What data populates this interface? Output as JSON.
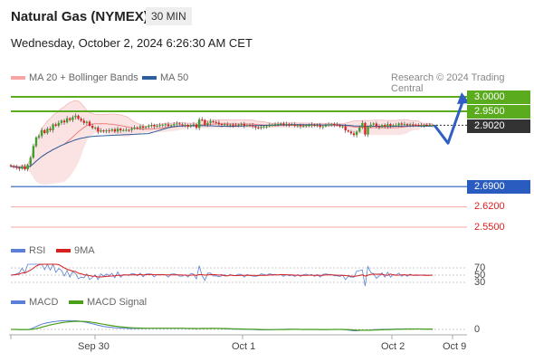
{
  "header": {
    "title": "Natural Gas (NYMEX)",
    "timeframe": "30 MIN",
    "datetime": "Wednesday, October 2, 2024 6:26:30 AM CET",
    "credit": "Research © 2024 Trading Central"
  },
  "legend": {
    "bb": "MA 20 + Bollinger Bands",
    "ma50": "MA 50",
    "rsi": "RSI",
    "rsi_ma": "9MA",
    "macd": "MACD",
    "macd_signal": "MACD Signal"
  },
  "colors": {
    "resistance": "#5aab1e",
    "support": "#2a5cc0",
    "minor_support": "#f4a6a6",
    "price_tag": "#333333",
    "ma50": "#2e5e9e",
    "bb": "#f08080"
  },
  "chart_data": {
    "type": "candlestick",
    "instrument": "Natural Gas (NYMEX)",
    "interval": "30 MIN",
    "ylim": [
      2.53,
      3.02
    ],
    "current_price": 2.902,
    "price_label": "2.9020",
    "x_ticks": [
      "Sep 30",
      "Oct 1",
      "Oct 2",
      "Oct 9"
    ],
    "levels": [
      {
        "value": 3.0,
        "label": "3.0000",
        "kind": "resistance"
      },
      {
        "value": 2.95,
        "label": "2.9500",
        "kind": "resistance"
      },
      {
        "value": 2.69,
        "label": "2.6900",
        "kind": "support"
      },
      {
        "value": 2.62,
        "label": "2.6200",
        "kind": "minor-support"
      },
      {
        "value": 2.55,
        "label": "2.5500",
        "kind": "minor-support"
      }
    ],
    "close_series": [
      2.76,
      2.758,
      2.755,
      2.752,
      2.76,
      2.75,
      2.765,
      2.79,
      2.83,
      2.86,
      2.865,
      2.885,
      2.875,
      2.89,
      2.885,
      2.905,
      2.9,
      2.91,
      2.918,
      2.912,
      2.926,
      2.92,
      2.93,
      2.935,
      2.924,
      2.918,
      2.91,
      2.914,
      2.9,
      2.893,
      2.894,
      2.88,
      2.884,
      2.881,
      2.884,
      2.883,
      2.888,
      2.88,
      2.89,
      2.884,
      2.885,
      2.886,
      2.885,
      2.89,
      2.894,
      2.892,
      2.898,
      2.893,
      2.896,
      2.9,
      2.903,
      2.898,
      2.9,
      2.902,
      2.904,
      2.905,
      2.899,
      2.902,
      2.906,
      2.908,
      2.905,
      2.902,
      2.903,
      2.897,
      2.902,
      2.905,
      2.893,
      2.922,
      2.92,
      2.904,
      2.91,
      2.916,
      2.913,
      2.911,
      2.906,
      2.904,
      2.905,
      2.902,
      2.904,
      2.902,
      2.901,
      2.904,
      2.906,
      2.9,
      2.902,
      2.901,
      2.898,
      2.894,
      2.892,
      2.896,
      2.898,
      2.898,
      2.902,
      2.904,
      2.906,
      2.906,
      2.908,
      2.904,
      2.906,
      2.904,
      2.904,
      2.9,
      2.902,
      2.898,
      2.899,
      2.902,
      2.902,
      2.904,
      2.9,
      2.902,
      2.896,
      2.898,
      2.902,
      2.904,
      2.906,
      2.904,
      2.902,
      2.898,
      2.898,
      2.884,
      2.88,
      2.874,
      2.868,
      2.88,
      2.894,
      2.91,
      2.87,
      2.896,
      2.904,
      2.908,
      2.898,
      2.896,
      2.903,
      2.897,
      2.906,
      2.9,
      2.902,
      2.902,
      2.908,
      2.904,
      2.906,
      2.902,
      2.905,
      2.904,
      2.903,
      2.902,
      2.902,
      2.903,
      2.902,
      2.902,
      2.902
    ],
    "projection": [
      {
        "x": "Oct 2",
        "y": 2.902
      },
      {
        "x": "Oct 2",
        "y": 2.84
      },
      {
        "x": "Oct 9",
        "y": 3.0
      }
    ],
    "rsi": {
      "ticks": [
        70,
        50,
        30
      ],
      "label": "RSI",
      "ma_label": "9MA"
    },
    "macd": {
      "ticks": [
        0
      ],
      "label": "MACD",
      "signal_label": "MACD Signal"
    }
  }
}
